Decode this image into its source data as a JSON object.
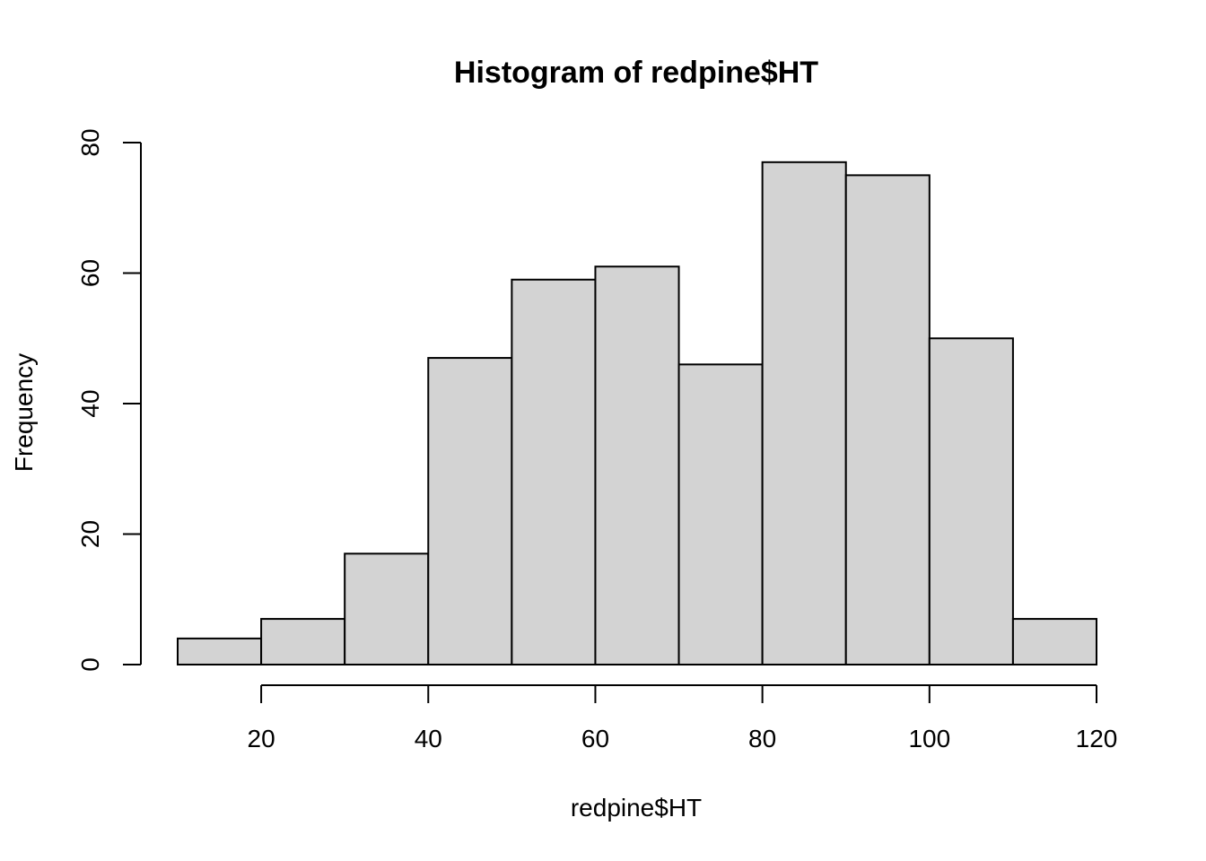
{
  "chart_data": {
    "type": "bar",
    "title": "Histogram of redpine$HT",
    "xlabel": "redpine$HT",
    "ylabel": "Frequency",
    "bins": [
      {
        "start": 10,
        "end": 20,
        "count": 4
      },
      {
        "start": 20,
        "end": 30,
        "count": 7
      },
      {
        "start": 30,
        "end": 40,
        "count": 17
      },
      {
        "start": 40,
        "end": 50,
        "count": 47
      },
      {
        "start": 50,
        "end": 60,
        "count": 59
      },
      {
        "start": 60,
        "end": 70,
        "count": 61
      },
      {
        "start": 70,
        "end": 80,
        "count": 46
      },
      {
        "start": 80,
        "end": 90,
        "count": 77
      },
      {
        "start": 90,
        "end": 100,
        "count": 75
      },
      {
        "start": 100,
        "end": 110,
        "count": 50
      },
      {
        "start": 110,
        "end": 120,
        "count": 7
      }
    ],
    "xlim": [
      10,
      120
    ],
    "ylim": [
      0,
      80
    ],
    "x_ticks": [
      20,
      40,
      60,
      80,
      100,
      120
    ],
    "x_tick_labels": [
      "20",
      "40",
      "60",
      "80",
      "100",
      "120"
    ],
    "y_ticks": [
      0,
      20,
      40,
      60,
      80
    ],
    "y_tick_labels": [
      "0",
      "20",
      "40",
      "60",
      "80"
    ],
    "grid": false,
    "legend": "none"
  }
}
